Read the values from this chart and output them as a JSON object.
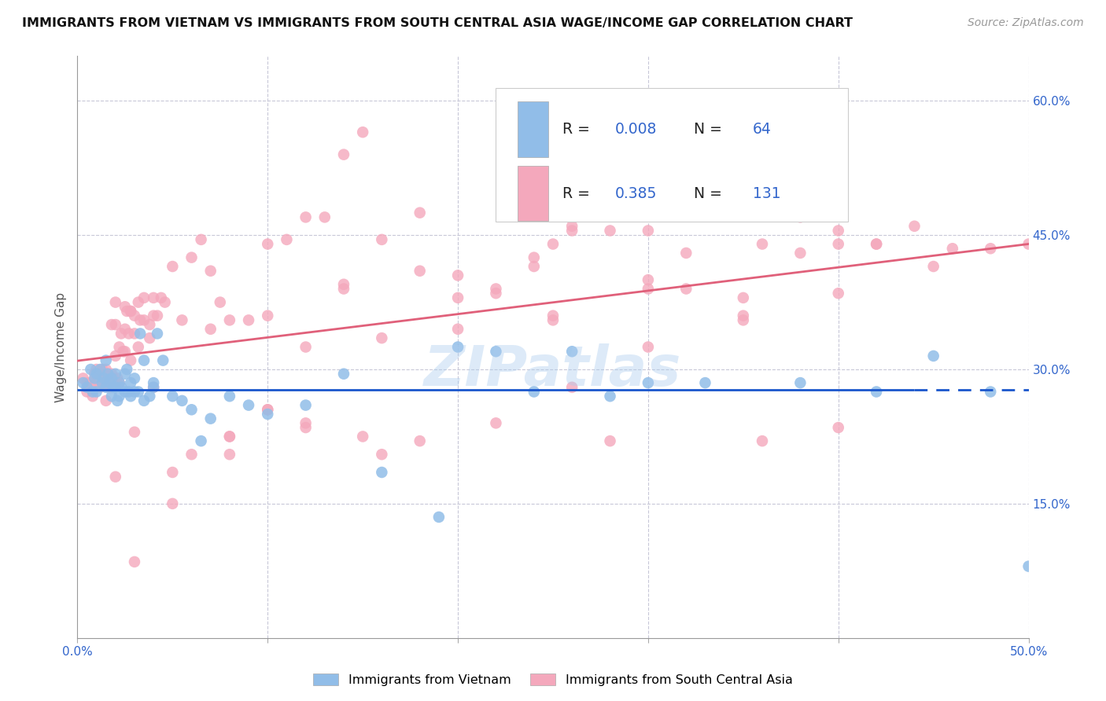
{
  "title": "IMMIGRANTS FROM VIETNAM VS IMMIGRANTS FROM SOUTH CENTRAL ASIA WAGE/INCOME GAP CORRELATION CHART",
  "source": "Source: ZipAtlas.com",
  "ylabel": "Wage/Income Gap",
  "x_min": 0.0,
  "x_max": 0.5,
  "y_min": 0.0,
  "y_max": 0.65,
  "x_ticks": [
    0.0,
    0.1,
    0.2,
    0.3,
    0.4,
    0.5
  ],
  "y_ticks": [
    0.0,
    0.15,
    0.3,
    0.45,
    0.6
  ],
  "y_tick_labels_right": [
    "",
    "15.0%",
    "30.0%",
    "45.0%",
    "60.0%"
  ],
  "blue_color": "#91BDE8",
  "pink_color": "#F4A8BC",
  "blue_line_color": "#1A56CC",
  "pink_line_color": "#E0607A",
  "blue_R": 0.008,
  "blue_N": 64,
  "pink_R": 0.385,
  "pink_N": 131,
  "watermark": "ZIPatlas",
  "text_color_blue": "#3366CC",
  "legend_label_blue": "Immigrants from Vietnam",
  "legend_label_pink": "Immigrants from South Central Asia",
  "blue_points_x": [
    0.003,
    0.005,
    0.007,
    0.008,
    0.009,
    0.01,
    0.01,
    0.012,
    0.013,
    0.014,
    0.015,
    0.015,
    0.016,
    0.017,
    0.018,
    0.018,
    0.019,
    0.02,
    0.02,
    0.021,
    0.022,
    0.022,
    0.023,
    0.025,
    0.025,
    0.026,
    0.027,
    0.028,
    0.028,
    0.03,
    0.03,
    0.032,
    0.033,
    0.035,
    0.035,
    0.038,
    0.04,
    0.04,
    0.042,
    0.045,
    0.05,
    0.055,
    0.06,
    0.065,
    0.07,
    0.08,
    0.09,
    0.1,
    0.12,
    0.14,
    0.16,
    0.19,
    0.2,
    0.22,
    0.24,
    0.26,
    0.28,
    0.3,
    0.33,
    0.38,
    0.42,
    0.45,
    0.48,
    0.5
  ],
  "blue_points_y": [
    0.285,
    0.28,
    0.3,
    0.275,
    0.29,
    0.295,
    0.275,
    0.3,
    0.285,
    0.29,
    0.31,
    0.28,
    0.295,
    0.285,
    0.29,
    0.27,
    0.28,
    0.295,
    0.28,
    0.265,
    0.27,
    0.285,
    0.28,
    0.295,
    0.275,
    0.3,
    0.275,
    0.285,
    0.27,
    0.29,
    0.275,
    0.275,
    0.34,
    0.265,
    0.31,
    0.27,
    0.285,
    0.28,
    0.34,
    0.31,
    0.27,
    0.265,
    0.255,
    0.22,
    0.245,
    0.27,
    0.26,
    0.25,
    0.26,
    0.295,
    0.185,
    0.135,
    0.325,
    0.32,
    0.275,
    0.32,
    0.27,
    0.285,
    0.285,
    0.285,
    0.275,
    0.315,
    0.275,
    0.08
  ],
  "pink_points_x": [
    0.003,
    0.005,
    0.005,
    0.007,
    0.008,
    0.009,
    0.01,
    0.01,
    0.012,
    0.012,
    0.013,
    0.014,
    0.015,
    0.015,
    0.015,
    0.016,
    0.017,
    0.018,
    0.018,
    0.018,
    0.019,
    0.02,
    0.02,
    0.02,
    0.021,
    0.022,
    0.022,
    0.023,
    0.024,
    0.025,
    0.025,
    0.025,
    0.026,
    0.027,
    0.028,
    0.028,
    0.028,
    0.03,
    0.03,
    0.032,
    0.032,
    0.033,
    0.035,
    0.035,
    0.038,
    0.038,
    0.04,
    0.04,
    0.042,
    0.044,
    0.046,
    0.05,
    0.055,
    0.06,
    0.065,
    0.07,
    0.075,
    0.08,
    0.09,
    0.1,
    0.11,
    0.12,
    0.13,
    0.14,
    0.15,
    0.16,
    0.18,
    0.2,
    0.22,
    0.24,
    0.25,
    0.26,
    0.28,
    0.3,
    0.32,
    0.35,
    0.38,
    0.4,
    0.42,
    0.44,
    0.46,
    0.48,
    0.5,
    0.2,
    0.22,
    0.25,
    0.3,
    0.35,
    0.02,
    0.03,
    0.05,
    0.08,
    0.1,
    0.12,
    0.16,
    0.28,
    0.36,
    0.4,
    0.05,
    0.06,
    0.08,
    0.1,
    0.12,
    0.15,
    0.18,
    0.22,
    0.26,
    0.3,
    0.35,
    0.4,
    0.45,
    0.08,
    0.3,
    0.4,
    0.36,
    0.24,
    0.18,
    0.14,
    0.1,
    0.07,
    0.04,
    0.03,
    0.12,
    0.16,
    0.2,
    0.25,
    0.32,
    0.38,
    0.42,
    0.26,
    0.14
  ],
  "pink_points_y": [
    0.29,
    0.285,
    0.275,
    0.285,
    0.27,
    0.295,
    0.3,
    0.285,
    0.295,
    0.28,
    0.3,
    0.29,
    0.3,
    0.285,
    0.265,
    0.295,
    0.28,
    0.295,
    0.28,
    0.35,
    0.29,
    0.375,
    0.35,
    0.315,
    0.29,
    0.325,
    0.285,
    0.34,
    0.32,
    0.345,
    0.32,
    0.37,
    0.365,
    0.34,
    0.365,
    0.31,
    0.365,
    0.36,
    0.34,
    0.375,
    0.325,
    0.355,
    0.38,
    0.355,
    0.35,
    0.335,
    0.38,
    0.36,
    0.36,
    0.38,
    0.375,
    0.415,
    0.355,
    0.425,
    0.445,
    0.41,
    0.375,
    0.355,
    0.355,
    0.44,
    0.445,
    0.47,
    0.47,
    0.54,
    0.565,
    0.445,
    0.475,
    0.405,
    0.39,
    0.415,
    0.44,
    0.46,
    0.455,
    0.455,
    0.43,
    0.36,
    0.47,
    0.455,
    0.44,
    0.46,
    0.435,
    0.435,
    0.44,
    0.38,
    0.385,
    0.355,
    0.4,
    0.38,
    0.18,
    0.23,
    0.15,
    0.225,
    0.255,
    0.24,
    0.205,
    0.22,
    0.22,
    0.235,
    0.185,
    0.205,
    0.225,
    0.255,
    0.235,
    0.225,
    0.22,
    0.24,
    0.28,
    0.325,
    0.355,
    0.385,
    0.415,
    0.205,
    0.39,
    0.44,
    0.44,
    0.425,
    0.41,
    0.39,
    0.36,
    0.345,
    0.28,
    0.085,
    0.325,
    0.335,
    0.345,
    0.36,
    0.39,
    0.43,
    0.44,
    0.455,
    0.395
  ]
}
